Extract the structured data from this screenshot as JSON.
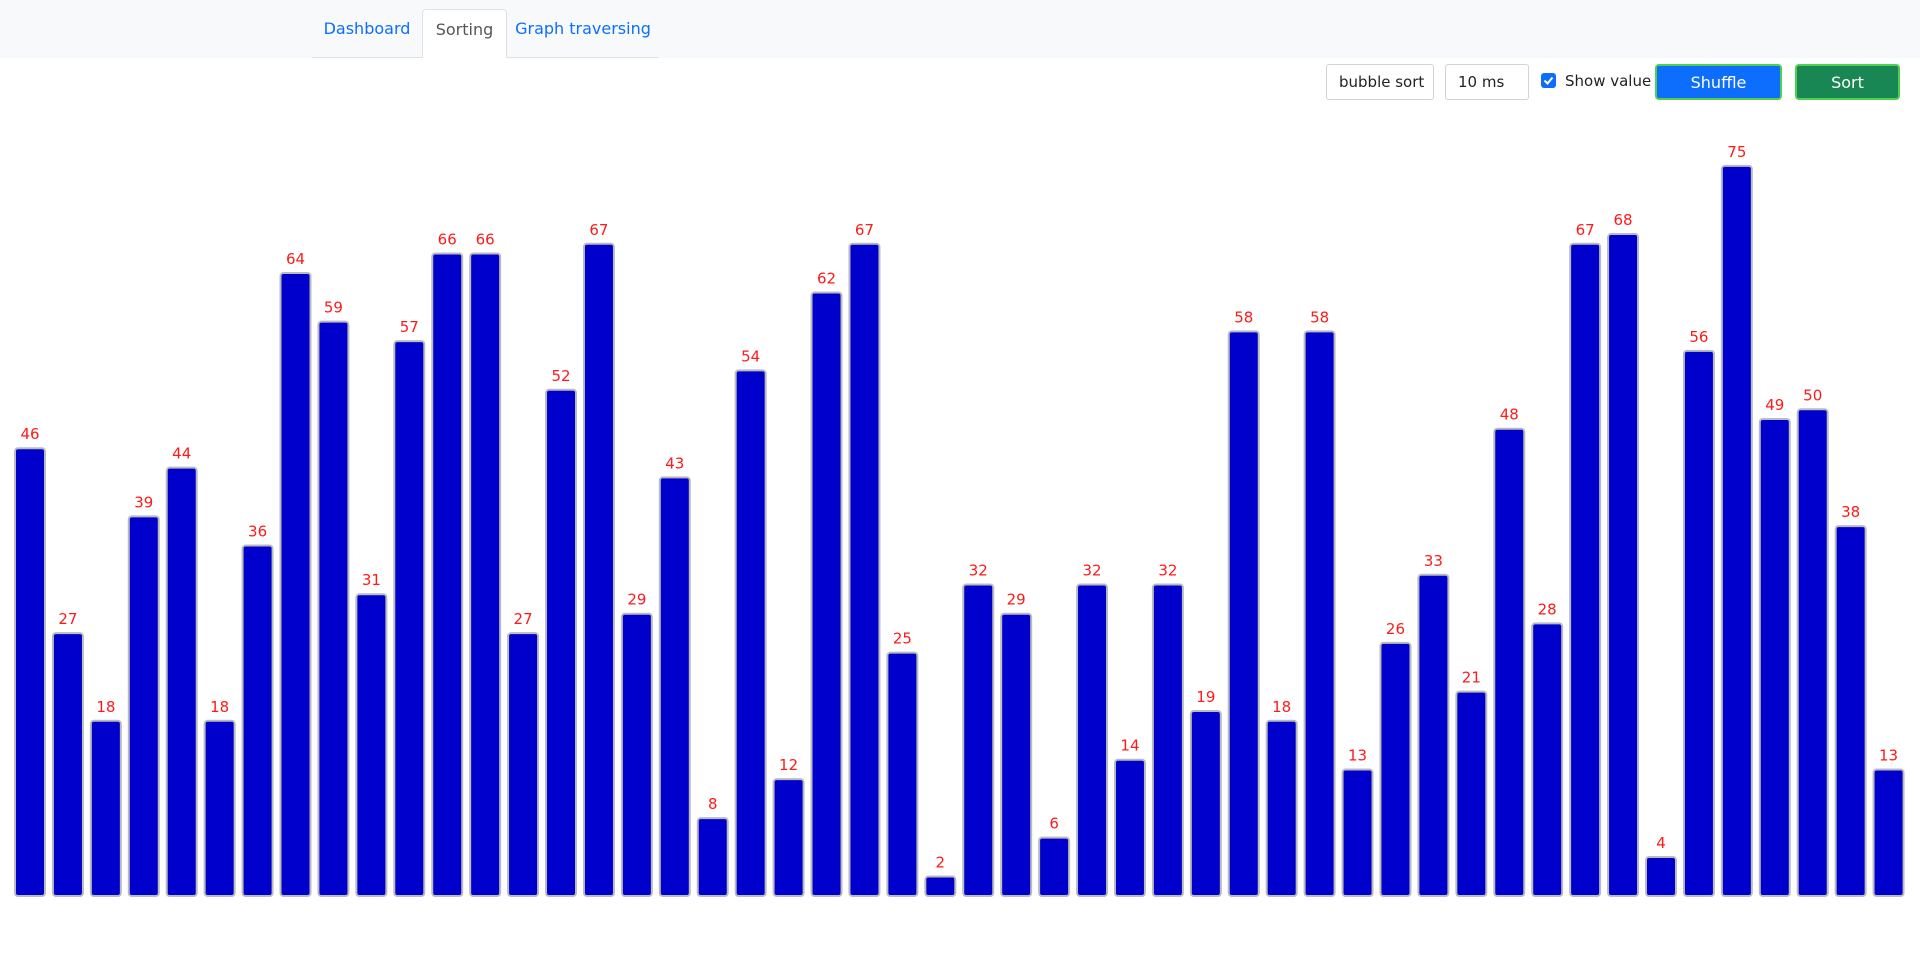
{
  "nav": {
    "tabs": [
      "Dashboard",
      "Sorting",
      "Graph traversing"
    ],
    "active": 1
  },
  "controls": {
    "algorithm": "bubble sort",
    "delay": "10 ms",
    "show_value_label": "Show value",
    "show_value": true,
    "shuffle": "Shuffle",
    "sort": "Sort"
  },
  "chart_data": {
    "type": "bar",
    "values": [
      46,
      27,
      18,
      39,
      44,
      18,
      36,
      64,
      59,
      31,
      57,
      66,
      66,
      27,
      52,
      67,
      29,
      43,
      8,
      54,
      12,
      62,
      67,
      25,
      2,
      32,
      29,
      6,
      32,
      14,
      32,
      19,
      58,
      18,
      58,
      13,
      26,
      33,
      21,
      48,
      28,
      67,
      68,
      4,
      56,
      75,
      49,
      50,
      38,
      13
    ],
    "color": "#0000cd",
    "label_color": "#ff1a1a"
  }
}
